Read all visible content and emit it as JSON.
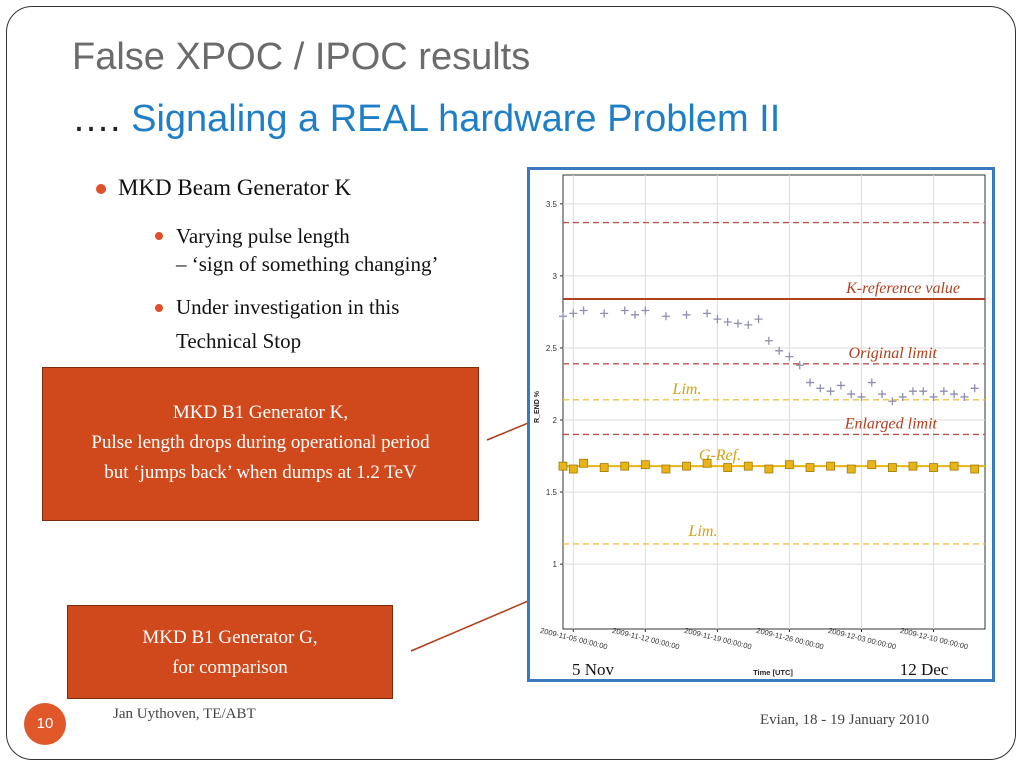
{
  "slide": {
    "title_line1": "False XPOC / IPOC results",
    "title_line2_dots": "….",
    "title_line2": " Signaling a REAL hardware Problem II",
    "bullets": {
      "main": "MKD Beam Generator K",
      "sub1_line1": "Varying pulse length",
      "sub1_line2": "– ‘sign of something changing’",
      "sub2_line1": "Under investigation in this",
      "sub2_line2": "Technical Stop"
    },
    "callout1": {
      "line1": "MKD B1 Generator K,",
      "line2": "Pulse length drops during operational period",
      "line3": "but ‘jumps back’ when dumps at 1.2 TeV"
    },
    "callout2": {
      "line1": "MKD B1 Generator G,",
      "line2": "for comparison"
    },
    "footer_left": "Jan Uythoven, TE/ABT",
    "footer_right": "Evian, 18 - 19 January 2010",
    "page_number": "10"
  },
  "chart_data": {
    "type": "scatter",
    "xlabel": "Time [UTC]",
    "ylabel": "R_END %",
    "x_ticks": [
      "2009-11-05 00:00:00",
      "2009-11-12 00:00:00",
      "2009-11-19 00:00:00",
      "2009-11-26 00:00:00",
      "2009-12-03 00:00:00",
      "2009-12-10 00:00:00"
    ],
    "x_range": [
      "2009-11-04",
      "2009-12-15"
    ],
    "y_ticks": [
      "1",
      "1.5",
      "2",
      "2.5",
      "3",
      "3.5"
    ],
    "ylim": [
      0.55,
      3.7
    ],
    "date_labels": {
      "start": "5 Nov",
      "end": "12 Dec"
    },
    "reference_lines": [
      {
        "label": "K-reference value",
        "y": 2.84,
        "style": "solid",
        "color": "#b0401e"
      },
      {
        "label": "Original limit",
        "y": 2.39,
        "style": "dashed",
        "color": "#c0504d"
      },
      {
        "label": "",
        "y": 3.37,
        "style": "dashed",
        "color": "#c0504d"
      },
      {
        "label": "Enlarged limit",
        "y": 1.9,
        "style": "dashed",
        "color": "#c0504d"
      },
      {
        "label": "Lim.",
        "y": 2.14,
        "style": "dashed",
        "color": "#f0c040"
      },
      {
        "label": "G-Ref.",
        "y": 1.68,
        "style": "solid",
        "color": "#e8b418"
      },
      {
        "label": "Lim.",
        "y": 1.14,
        "style": "dashed",
        "color": "#f0c040"
      }
    ],
    "series": [
      {
        "name": "",
        "marker": "plus",
        "color": "#8f8fb0",
        "x": [
          "2009-11-04",
          "2009-11-05",
          "2009-11-06",
          "2009-11-08",
          "2009-11-10",
          "2009-11-11",
          "2009-11-12",
          "2009-11-14",
          "2009-11-16",
          "2009-11-18",
          "2009-11-19",
          "2009-11-20",
          "2009-11-21",
          "2009-11-22",
          "2009-11-23",
          "2009-11-24",
          "2009-11-25",
          "2009-11-26",
          "2009-11-27",
          "2009-11-28",
          "2009-11-29",
          "2009-11-30",
          "2009-12-01",
          "2009-12-02",
          "2009-12-03",
          "2009-12-04",
          "2009-12-05",
          "2009-12-06",
          "2009-12-07",
          "2009-12-08",
          "2009-12-09",
          "2009-12-10",
          "2009-12-11",
          "2009-12-12",
          "2009-12-13",
          "2009-12-14"
        ],
        "values": [
          2.72,
          2.74,
          2.76,
          2.74,
          2.76,
          2.73,
          2.76,
          2.72,
          2.73,
          2.74,
          2.7,
          2.68,
          2.67,
          2.66,
          2.7,
          2.55,
          2.48,
          2.44,
          2.38,
          2.26,
          2.22,
          2.2,
          2.24,
          2.18,
          2.16,
          2.26,
          2.18,
          2.13,
          2.16,
          2.2,
          2.2,
          2.16,
          2.2,
          2.18,
          2.16,
          2.22
        ]
      },
      {
        "name": "",
        "marker": "square",
        "color": "#e8b418",
        "x": [
          "2009-11-04",
          "2009-11-05",
          "2009-11-06",
          "2009-11-08",
          "2009-11-10",
          "2009-11-12",
          "2009-11-14",
          "2009-11-16",
          "2009-11-18",
          "2009-11-20",
          "2009-11-22",
          "2009-11-24",
          "2009-11-26",
          "2009-11-28",
          "2009-11-30",
          "2009-12-02",
          "2009-12-04",
          "2009-12-06",
          "2009-12-08",
          "2009-12-10",
          "2009-12-12",
          "2009-12-14"
        ],
        "values": [
          1.68,
          1.66,
          1.7,
          1.67,
          1.68,
          1.69,
          1.66,
          1.68,
          1.7,
          1.67,
          1.68,
          1.66,
          1.69,
          1.67,
          1.68,
          1.66,
          1.69,
          1.67,
          1.68,
          1.67,
          1.68,
          1.66
        ]
      }
    ]
  }
}
